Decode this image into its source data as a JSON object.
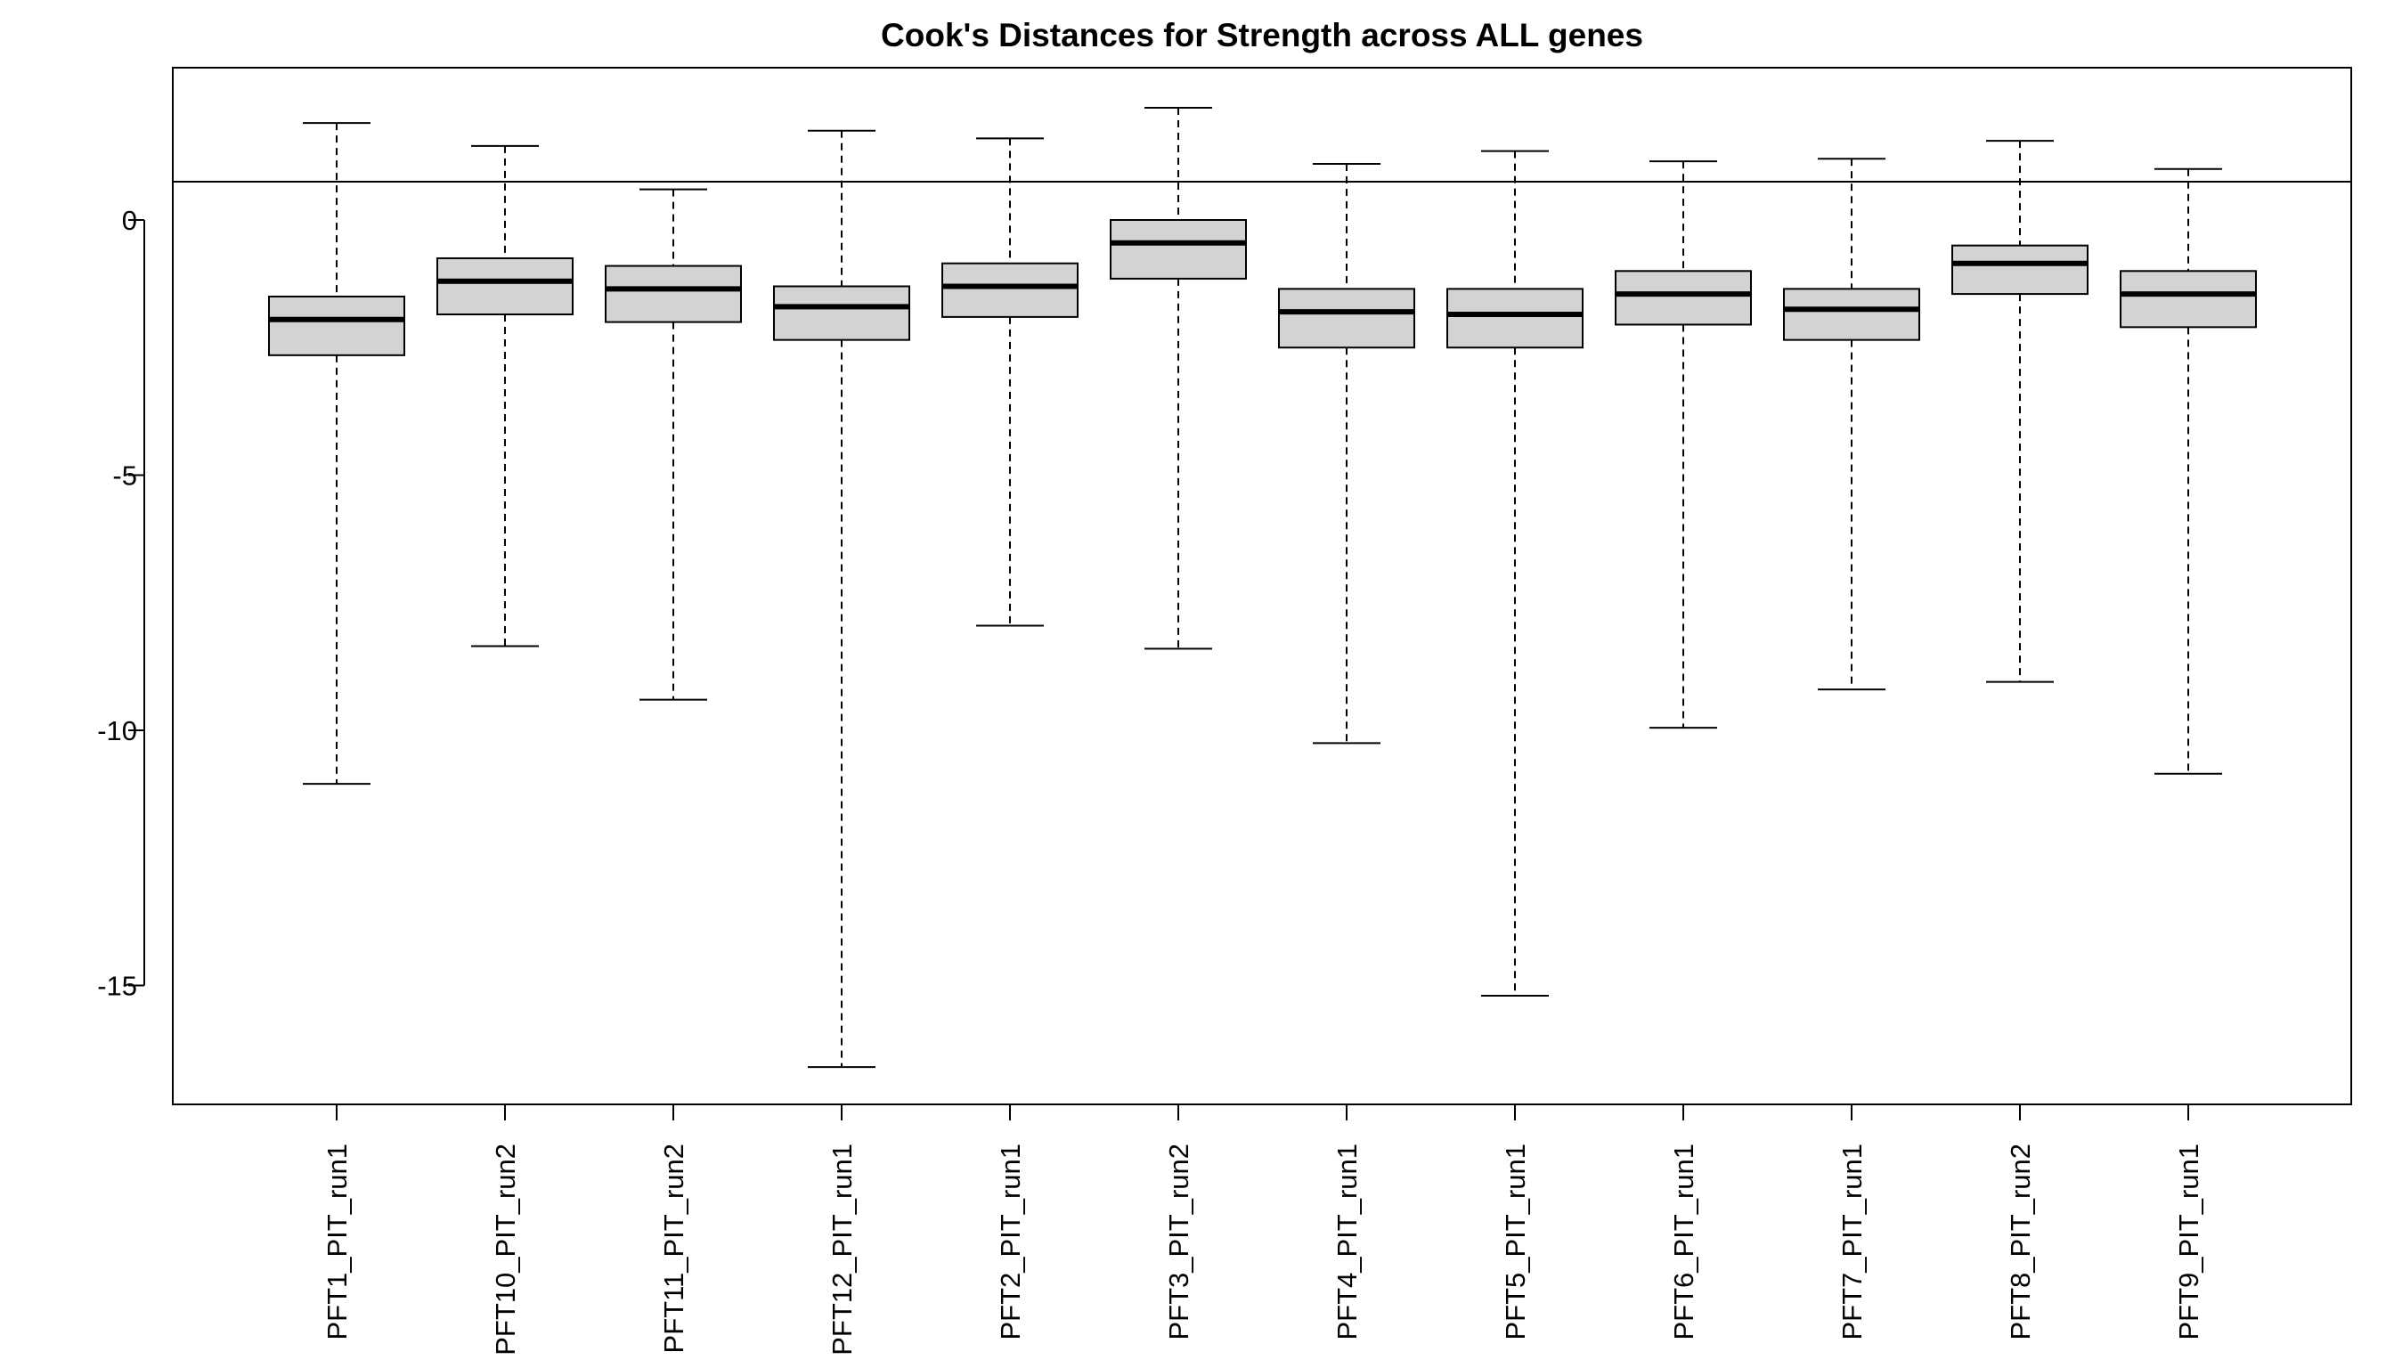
{
  "chart_data": {
    "type": "boxplot",
    "title": "Cook's Distances for Strength across ALL genes",
    "xlabel": "",
    "ylabel": "",
    "categories": [
      "PFT1_PIT_run1",
      "PFT10_PIT_run2",
      "PFT11_PIT_run2",
      "PFT12_PIT_run1",
      "PFT2_PIT_run1",
      "PFT3_PIT_run2",
      "PFT4_PIT_run1",
      "PFT5_PIT_run1",
      "PFT6_PIT_run1",
      "PFT7_PIT_run1",
      "PFT8_PIT_run2",
      "PFT9_PIT_run1"
    ],
    "boxes": [
      {
        "min": -11.05,
        "q1": -2.65,
        "median": -1.95,
        "q3": -1.5,
        "max": 1.9
      },
      {
        "min": -8.35,
        "q1": -1.85,
        "median": -1.2,
        "q3": -0.75,
        "max": 1.45
      },
      {
        "min": -9.4,
        "q1": -2.0,
        "median": -1.35,
        "q3": -0.9,
        "max": 0.6
      },
      {
        "min": -16.6,
        "q1": -2.35,
        "median": -1.7,
        "q3": -1.3,
        "max": 1.75
      },
      {
        "min": -7.95,
        "q1": -1.9,
        "median": -1.3,
        "q3": -0.85,
        "max": 1.6
      },
      {
        "min": -8.4,
        "q1": -1.15,
        "median": -0.45,
        "q3": 0.0,
        "max": 2.2
      },
      {
        "min": -10.25,
        "q1": -2.5,
        "median": -1.8,
        "q3": -1.35,
        "max": 1.1
      },
      {
        "min": -15.2,
        "q1": -2.5,
        "median": -1.85,
        "q3": -1.35,
        "max": 1.35
      },
      {
        "min": -9.95,
        "q1": -2.05,
        "median": -1.45,
        "q3": -1.0,
        "max": 1.15
      },
      {
        "min": -9.2,
        "q1": -2.35,
        "median": -1.75,
        "q3": -1.35,
        "max": 1.2
      },
      {
        "min": -9.05,
        "q1": -1.45,
        "median": -0.85,
        "q3": -0.5,
        "max": 1.55
      },
      {
        "min": -10.85,
        "q1": -2.1,
        "median": -1.45,
        "q3": -1.0,
        "max": 1.0
      }
    ],
    "reference_line": 0.75,
    "yticks": [
      0,
      -5,
      -10,
      -15
    ],
    "ytick_labels": [
      "0",
      "-5",
      "-10",
      "-15"
    ],
    "ylim": [
      -17.5,
      3.0
    ],
    "box_fill": "#d3d3d3",
    "line_color": "#000000",
    "grid": false,
    "legend": "none"
  }
}
